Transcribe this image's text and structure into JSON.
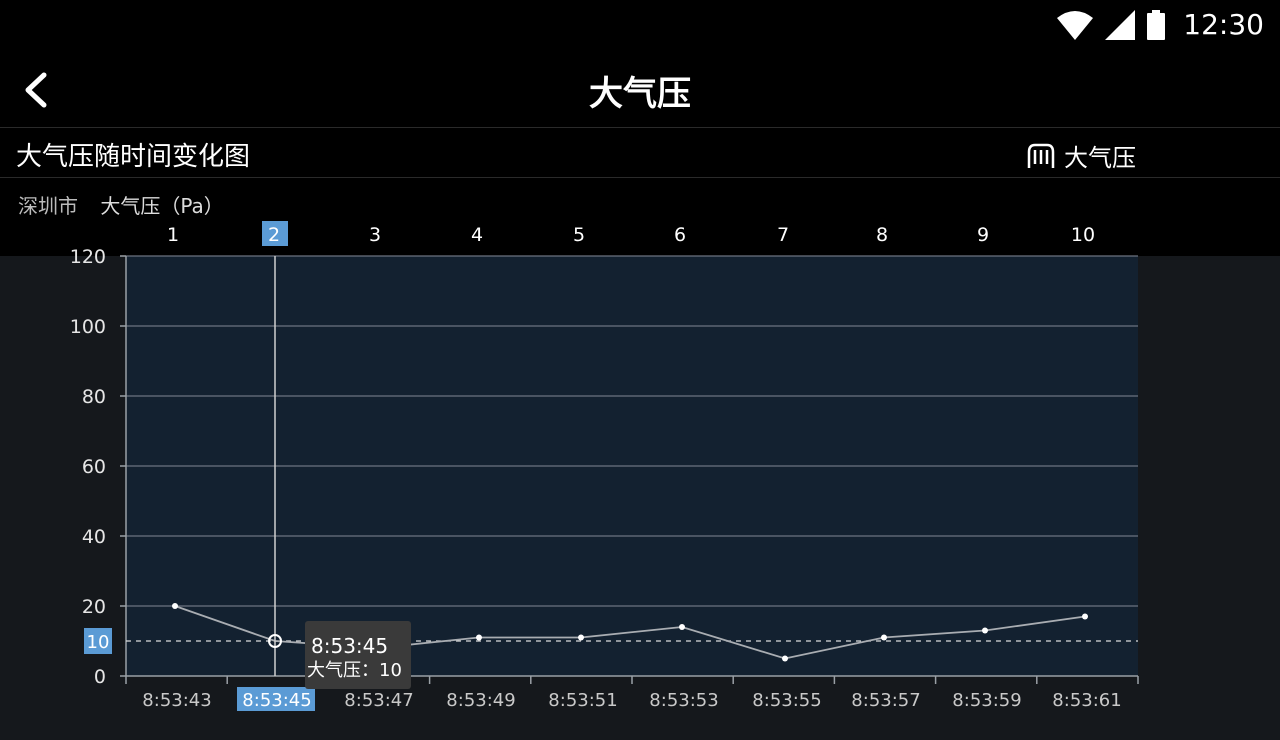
{
  "status_bar": {
    "time": "12:30",
    "icons": [
      "wifi-icon",
      "cell-signal-icon",
      "battery-icon"
    ]
  },
  "app_bar": {
    "title": "大气压",
    "back_icon": "chevron-left-icon"
  },
  "section": {
    "title": "大气压随时间变化图",
    "legend_label": "大气压",
    "legend_icon": "pressure-icon",
    "city": "深圳市",
    "unit_label": "大气压（Pa）"
  },
  "colors": {
    "plot_bg": "#132130",
    "outer_bg": "#15181c",
    "line": "#a9adb2",
    "highlight": "#5b9bd5",
    "tooltip_bg": "#3a3a3a"
  },
  "chart_data": {
    "type": "line",
    "top_labels": [
      "1",
      "2",
      "3",
      "4",
      "5",
      "6",
      "7",
      "8",
      "9",
      "10"
    ],
    "categories": [
      "8:53:43",
      "8:53:45",
      "8:53:47",
      "8:53:49",
      "8:53:51",
      "8:53:53",
      "8:53:55",
      "8:53:57",
      "8:53:59",
      "8:53:61"
    ],
    "series": [
      {
        "values": [
          20,
          10,
          8,
          11,
          11,
          14,
          5,
          11,
          13,
          17
        ]
      }
    ],
    "ylim": [
      0,
      120
    ],
    "yticks": [
      0,
      20,
      40,
      60,
      80,
      100,
      120
    ],
    "grid": true,
    "selected_index": 1,
    "reference_value": 10,
    "reference_label": "10",
    "tooltip": {
      "time": "8:53:45",
      "label": "大气压：10"
    }
  }
}
